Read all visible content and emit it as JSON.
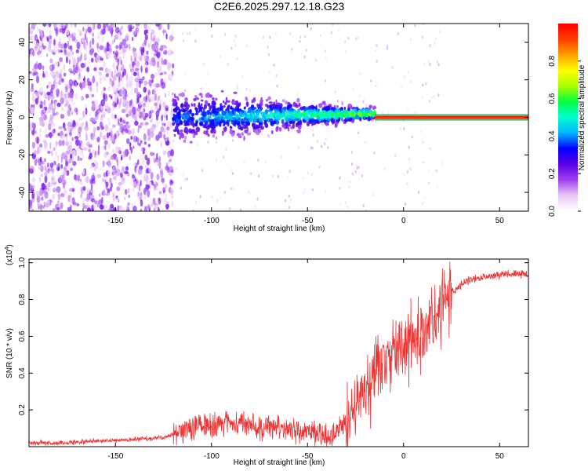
{
  "chart_data": [
    {
      "type": "heatmap",
      "title": "C2E6.2025.297.12.18.G23",
      "xlabel": "Height of straight line (km)",
      "ylabel": "Frequency (Hz)",
      "xlim": [
        -195,
        65
      ],
      "ylim": [
        -50,
        50
      ],
      "xticks": [
        -150,
        -100,
        -50,
        0,
        50
      ],
      "yticks": [
        -40,
        -20,
        0,
        20,
        40
      ],
      "colorbar": {
        "label": "Normalized spectral amplitude",
        "range": [
          0,
          1
        ],
        "ticks": [
          0.0,
          0.2,
          0.4,
          0.6,
          0.8
        ],
        "colors": [
          "#ffffff",
          "#e9c9f5",
          "#a040f0",
          "#5a00e6",
          "#0000ff",
          "#00b4ff",
          "#00ffd0",
          "#00ff40",
          "#aaff00",
          "#ffff00",
          "#ffa000",
          "#ff3c00",
          "#ff0000"
        ]
      },
      "features": [
        {
          "name": "scattered noise",
          "x_range": [
            -195,
            -120
          ],
          "freq_range": [
            -50,
            50
          ],
          "amplitude": 0.1
        },
        {
          "name": "broadening band",
          "x_range": [
            -120,
            -15
          ],
          "freq_center": [
            -2,
            2
          ],
          "amplitude": 0.3
        },
        {
          "name": "narrow tone",
          "x_range": [
            -15,
            65
          ],
          "freq": 0,
          "amplitude": 0.95
        }
      ]
    },
    {
      "type": "line",
      "xlabel": "Height of straight line (km)",
      "ylabel": "SNR (10 * v/v)",
      "yscale_label": "(x10",
      "yscale_exponent": "4",
      "xlim": [
        -195,
        65
      ],
      "ylim": [
        0,
        1.02
      ],
      "xticks": [
        -150,
        -100,
        -50,
        0,
        50
      ],
      "yticks": [
        0.2,
        0.4,
        0.6,
        0.8,
        1.0
      ],
      "series": [
        {
          "name": "SNR",
          "color": "#ee3333",
          "x": [
            -195,
            -180,
            -160,
            -140,
            -125,
            -115,
            -105,
            -95,
            -85,
            -75,
            -65,
            -55,
            -45,
            -38,
            -32,
            -28,
            -24,
            -20,
            -16,
            -12,
            -8,
            -4,
            0,
            4,
            8,
            12,
            16,
            20,
            25,
            30,
            35,
            40,
            45,
            50,
            55,
            60,
            65
          ],
          "y": [
            0.02,
            0.02,
            0.03,
            0.04,
            0.05,
            0.09,
            0.12,
            0.13,
            0.12,
            0.11,
            0.1,
            0.09,
            0.07,
            0.05,
            0.12,
            0.18,
            0.25,
            0.32,
            0.38,
            0.43,
            0.47,
            0.52,
            0.56,
            0.6,
            0.62,
            0.66,
            0.7,
            0.76,
            0.84,
            0.88,
            0.91,
            0.92,
            0.93,
            0.935,
            0.94,
            0.94,
            0.94
          ]
        }
      ]
    }
  ]
}
